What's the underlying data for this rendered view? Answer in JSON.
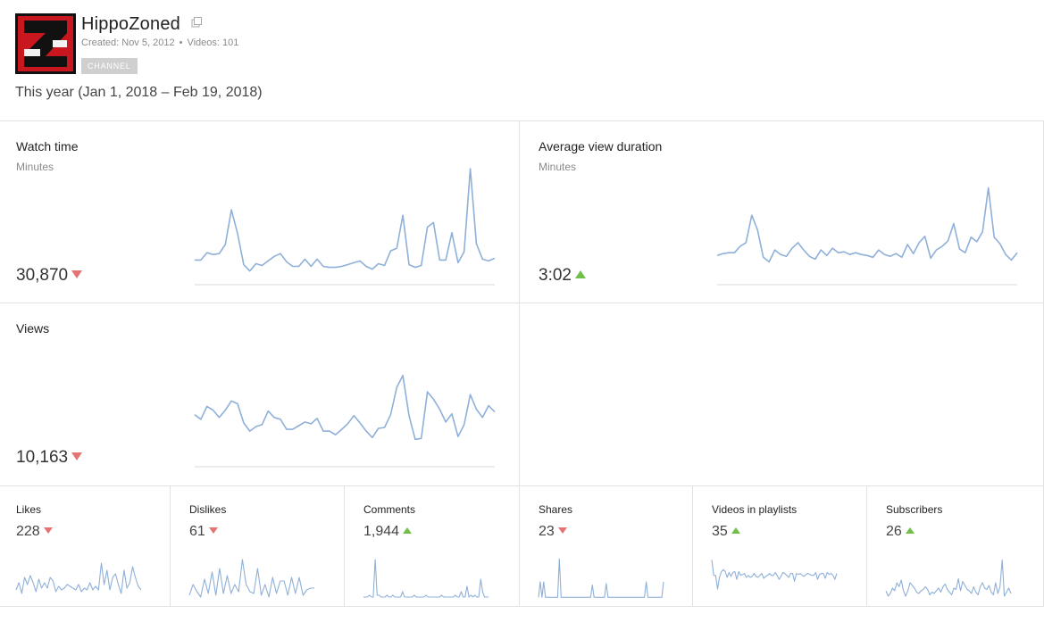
{
  "channel": {
    "name": "HippoZoned",
    "created": "Created: Nov 5, 2012",
    "videos": "Videos: 101",
    "badge": "CHANNEL"
  },
  "date_range": "This year (Jan 1, 2018 – Feb 19, 2018)",
  "colors": {
    "line": "#8fb0d8",
    "axis": "#d8d8d8",
    "down": "#e57373",
    "up": "#6fbf4a"
  },
  "metrics": {
    "watch_time": {
      "title": "Watch time",
      "unit": "Minutes",
      "value": "30,870",
      "trend": "down",
      "series": [
        27,
        27,
        35,
        33,
        34,
        44,
        82,
        56,
        22,
        15,
        23,
        21,
        26,
        31,
        34,
        25,
        20,
        20,
        28,
        20,
        28,
        20,
        19,
        19,
        20,
        22,
        24,
        26,
        20,
        17,
        23,
        21,
        37,
        40,
        76,
        22,
        19,
        21,
        63,
        68,
        27,
        27,
        57,
        24,
        36,
        127,
        45,
        28,
        26,
        29
      ]
    },
    "avg_view_duration": {
      "title": "Average view duration",
      "unit": "Minutes",
      "value": "3:02",
      "trend": "up",
      "series": [
        32,
        34,
        35,
        35,
        42,
        46,
        76,
        60,
        30,
        25,
        38,
        33,
        31,
        40,
        46,
        38,
        31,
        28,
        38,
        32,
        40,
        35,
        36,
        33,
        35,
        33,
        32,
        30,
        38,
        33,
        31,
        34,
        30,
        44,
        34,
        46,
        53,
        29,
        38,
        42,
        48,
        67,
        39,
        35,
        52,
        47,
        58,
        106,
        52,
        45,
        33,
        27,
        35
      ]
    },
    "views": {
      "title": "Views",
      "unit": "",
      "value": "10,163",
      "trend": "down",
      "series": [
        57,
        52,
        66,
        62,
        54,
        62,
        72,
        69,
        48,
        39,
        44,
        46,
        61,
        54,
        52,
        41,
        41,
        45,
        49,
        47,
        53,
        39,
        39,
        35,
        41,
        47,
        56,
        48,
        39,
        32,
        42,
        43,
        57,
        87,
        100,
        56,
        30,
        31,
        82,
        74,
        63,
        49,
        58,
        33,
        46,
        79,
        63,
        54,
        67,
        60
      ]
    }
  },
  "small_metrics": [
    {
      "title": "Likes",
      "value": "228",
      "trend": "down",
      "series": [
        5,
        9,
        3,
        12,
        8,
        13,
        9,
        4,
        11,
        6,
        9,
        6,
        12,
        10,
        4,
        7,
        5,
        6,
        8,
        7,
        6,
        5,
        8,
        4,
        6,
        5,
        9,
        5,
        7,
        5,
        20,
        8,
        16,
        5,
        12,
        14,
        8,
        3,
        16,
        6,
        9,
        18,
        12,
        7,
        5
      ]
    },
    {
      "title": "Dislikes",
      "value": "61",
      "trend": "down",
      "series": [
        2,
        8,
        4,
        1,
        11,
        3,
        15,
        2,
        17,
        3,
        13,
        3,
        8,
        4,
        22,
        8,
        4,
        3,
        17,
        2,
        8,
        1,
        12,
        3,
        10,
        10,
        2,
        12,
        3,
        12,
        2,
        5,
        6,
        6
      ]
    },
    {
      "title": "Comments",
      "value": "1,944",
      "trend": "up",
      "series": [
        1,
        1,
        1,
        2,
        1,
        1,
        22,
        2,
        2,
        1,
        1,
        1,
        2,
        1,
        1,
        2,
        1,
        1,
        1,
        1,
        4,
        1,
        1,
        1,
        1,
        1,
        2,
        1,
        1,
        1,
        1,
        1,
        2,
        1,
        1,
        1,
        1,
        1,
        1,
        1,
        2,
        1,
        1,
        1,
        1,
        1,
        1,
        2,
        1,
        1,
        4,
        1,
        1,
        7,
        1,
        2,
        1,
        2,
        1,
        1,
        11,
        4,
        1,
        1,
        1
      ]
    },
    {
      "title": "Shares",
      "value": "23",
      "trend": "down",
      "series": [
        1,
        11,
        1,
        11,
        1,
        1,
        1,
        1,
        1,
        1,
        1,
        1,
        26,
        1,
        1,
        1,
        1,
        1,
        1,
        1,
        1,
        1,
        1,
        1,
        1,
        1,
        1,
        1,
        1,
        1,
        1,
        9,
        1,
        1,
        1,
        1,
        1,
        1,
        1,
        10,
        1,
        1,
        1,
        1,
        1,
        1,
        1,
        1,
        1,
        1,
        1,
        1,
        1,
        1,
        1,
        1,
        1,
        1,
        1,
        1,
        1,
        1,
        11,
        1,
        1,
        1,
        1,
        1,
        1,
        1,
        1,
        1,
        11
      ]
    },
    {
      "title": "Videos in playlists",
      "value": "35",
      "trend": "up",
      "series": [
        40,
        24,
        24,
        10,
        22,
        28,
        30,
        28,
        22,
        27,
        23,
        27,
        28,
        20,
        28,
        24,
        25,
        26,
        22,
        24,
        22,
        23,
        26,
        23,
        22,
        24,
        26,
        21,
        23,
        24,
        26,
        24,
        24,
        27,
        24,
        20,
        23,
        27,
        26,
        24,
        22,
        26,
        26,
        18,
        26,
        25,
        26,
        24,
        23,
        25,
        26,
        25,
        24,
        24,
        27,
        20,
        25,
        26,
        26,
        21,
        27,
        25,
        26,
        24,
        20,
        26
      ]
    },
    {
      "title": "Subscribers",
      "value": "26",
      "trend": "up",
      "series": [
        6,
        2,
        4,
        8,
        6,
        12,
        9,
        14,
        6,
        2,
        6,
        12,
        10,
        8,
        5,
        4,
        6,
        7,
        9,
        7,
        3,
        5,
        4,
        6,
        8,
        5,
        9,
        11,
        7,
        5,
        3,
        8,
        7,
        15,
        6,
        13,
        10,
        7,
        6,
        4,
        9,
        5,
        3,
        9,
        12,
        8,
        7,
        10,
        5,
        3,
        12,
        4,
        9,
        29,
        2,
        5,
        8,
        4
      ]
    }
  ]
}
